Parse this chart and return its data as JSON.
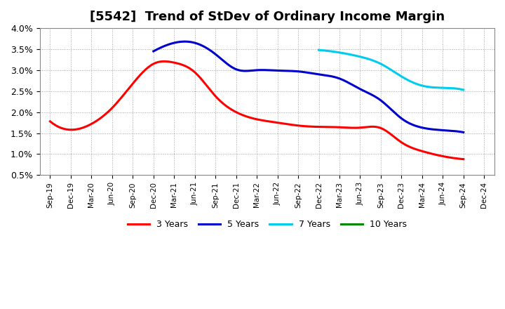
{
  "title": "[5542]  Trend of StDev of Ordinary Income Margin",
  "ylim": [
    0.005,
    0.04
  ],
  "yticks": [
    0.005,
    0.01,
    0.015,
    0.02,
    0.025,
    0.03,
    0.035,
    0.04
  ],
  "ytick_labels": [
    "0.5%",
    "1.0%",
    "1.5%",
    "2.0%",
    "2.5%",
    "3.0%",
    "3.5%",
    "4.0%"
  ],
  "x_labels": [
    "Sep-19",
    "Dec-19",
    "Mar-20",
    "Jun-20",
    "Sep-20",
    "Dec-20",
    "Mar-21",
    "Jun-21",
    "Sep-21",
    "Dec-21",
    "Mar-22",
    "Jun-22",
    "Sep-22",
    "Dec-22",
    "Mar-23",
    "Jun-23",
    "Sep-23",
    "Dec-23",
    "Mar-24",
    "Jun-24",
    "Sep-24",
    "Dec-24"
  ],
  "series_3y_x": [
    0,
    1,
    2,
    3,
    4,
    5,
    6,
    7,
    8,
    9,
    10,
    11,
    12,
    13,
    14,
    15,
    16,
    17,
    18,
    19,
    20
  ],
  "series_3y_y": [
    0.0178,
    0.0158,
    0.0172,
    0.021,
    0.0268,
    0.0315,
    0.0318,
    0.0295,
    0.0238,
    0.02,
    0.0183,
    0.0175,
    0.0168,
    0.0165,
    0.0164,
    0.0163,
    0.0162,
    0.0128,
    0.0107,
    0.0095,
    0.0088
  ],
  "series_5y_x": [
    5,
    6,
    7,
    8,
    9,
    10,
    11,
    12,
    13,
    14,
    15,
    16,
    17,
    18,
    19,
    20
  ],
  "series_5y_y": [
    0.0345,
    0.0365,
    0.0365,
    0.0338,
    0.0302,
    0.03,
    0.0299,
    0.0297,
    0.029,
    0.028,
    0.0255,
    0.0228,
    0.0185,
    0.0163,
    0.0157,
    0.0152
  ],
  "series_7y_x": [
    13,
    14,
    15,
    16,
    17,
    18,
    19,
    20
  ],
  "series_7y_y": [
    0.0348,
    0.0342,
    0.0332,
    0.0315,
    0.0285,
    0.0263,
    0.0258,
    0.0253
  ],
  "series_10y_x": [],
  "series_10y_y": [],
  "color_3y": "#ff0000",
  "color_5y": "#0000cc",
  "color_7y": "#00ccee",
  "color_10y": "#008800",
  "legend_labels": [
    "3 Years",
    "5 Years",
    "7 Years",
    "10 Years"
  ],
  "background_color": "#ffffff",
  "grid_color": "#999999",
  "title_fontsize": 13,
  "linewidth": 2.2
}
